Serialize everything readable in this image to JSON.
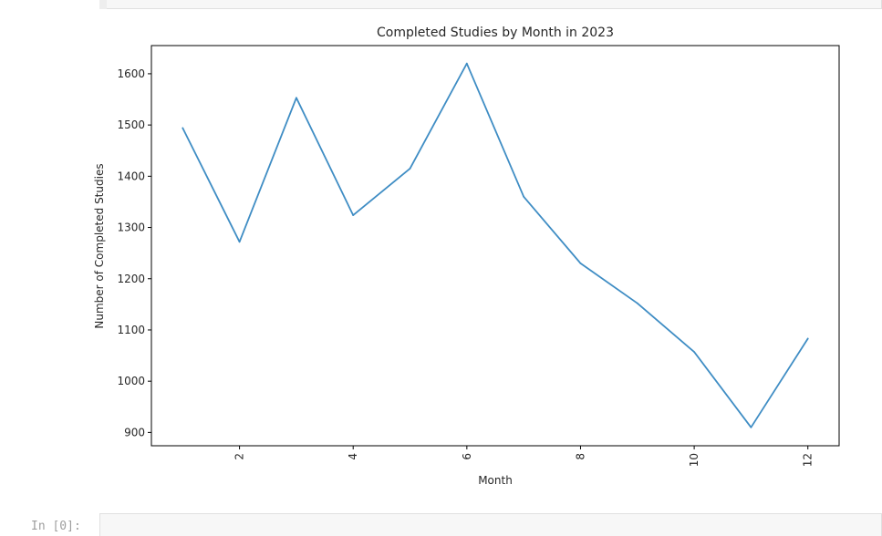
{
  "notebook": {
    "next_cell_prompt": "In [0]:"
  },
  "colors": {
    "line": "#3f8dc4",
    "axis": "#000000",
    "cell_background": "#f7f7f7"
  },
  "chart_data": {
    "type": "line",
    "title": "Completed Studies by Month in 2023",
    "xlabel": "Month",
    "ylabel": "Number of Completed Studies",
    "x": [
      1,
      2,
      3,
      4,
      5,
      6,
      7,
      8,
      9,
      10,
      11,
      12
    ],
    "series": [
      {
        "values": [
          1494,
          1272,
          1553,
          1324,
          1415,
          1620,
          1360,
          1230,
          1152,
          1057,
          910,
          1083
        ]
      }
    ],
    "xticks": [
      2,
      4,
      6,
      8,
      10,
      12
    ],
    "yticks": [
      900,
      1000,
      1100,
      1200,
      1300,
      1400,
      1500,
      1600
    ],
    "xlim": [
      0.45,
      12.55
    ],
    "ylim": [
      874,
      1655
    ],
    "grid": false,
    "legend": "none",
    "xtick_rotation": "vertical"
  }
}
